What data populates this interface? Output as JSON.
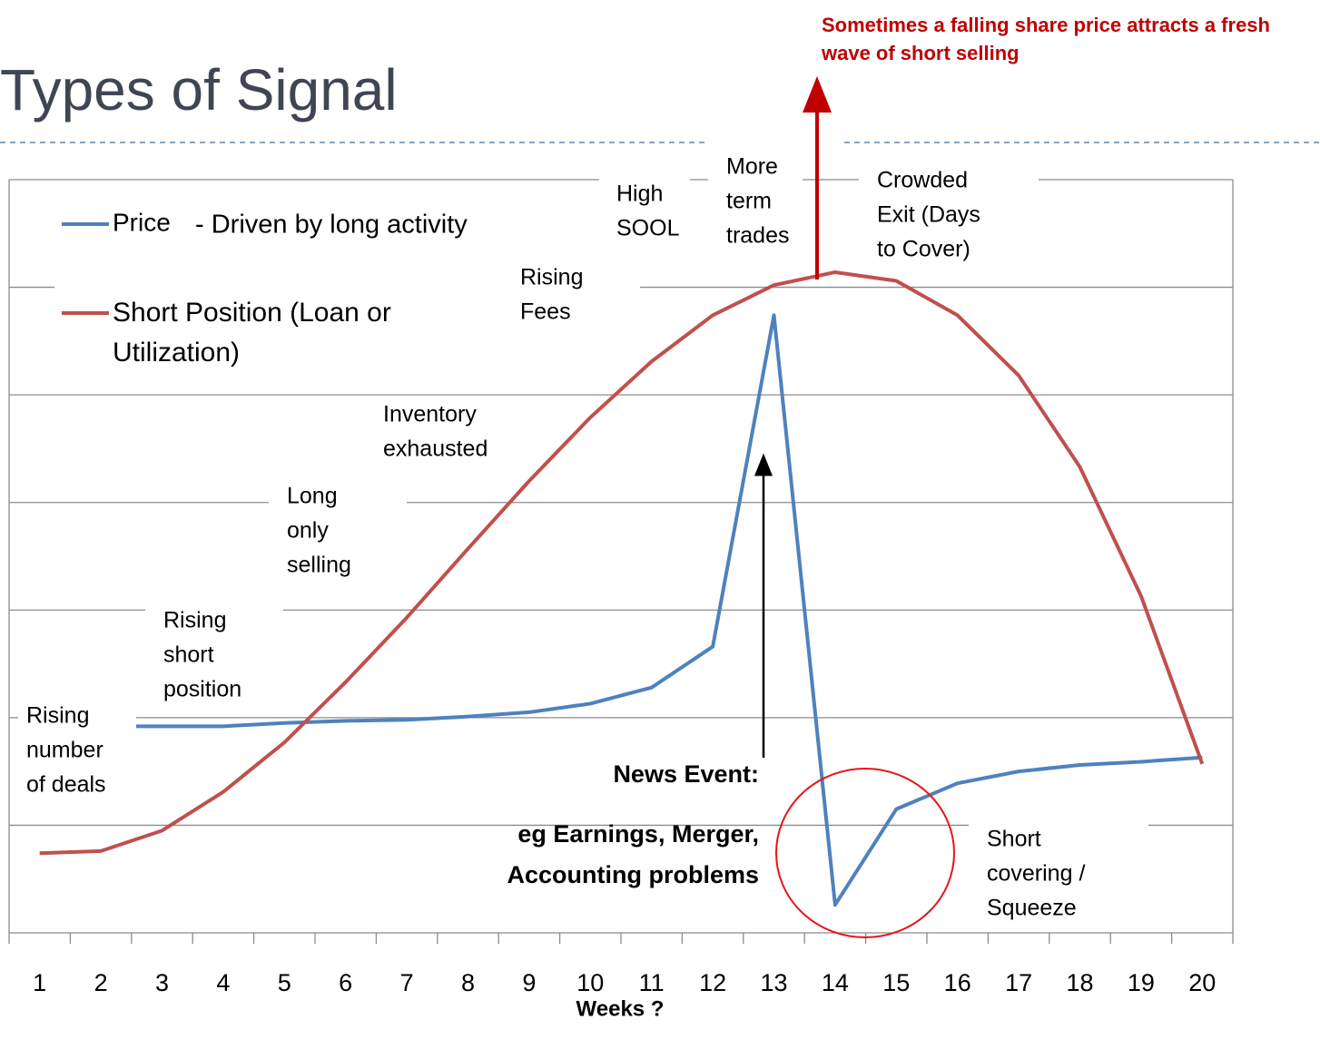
{
  "chart_data": {
    "type": "line",
    "title": "Types of Signal",
    "x_label": "Weeks ?",
    "categories": [
      "1",
      "2",
      "3",
      "4",
      "5",
      "6",
      "7",
      "8",
      "9",
      "10",
      "11",
      "12",
      "13",
      "14",
      "15",
      "16",
      "17",
      "18",
      "19",
      "20"
    ],
    "series": [
      {
        "name": "Price",
        "note": "- Driven by long activity",
        "color": "#4f81bd",
        "values": [
          1.92,
          1.92,
          1.92,
          1.92,
          1.95,
          1.97,
          1.98,
          2.01,
          2.05,
          2.13,
          2.28,
          2.66,
          5.74,
          0.26,
          1.15,
          1.39,
          1.5,
          1.56,
          1.59,
          1.63
        ]
      },
      {
        "name": "Short Position (Loan or Utilization)",
        "color": "#c0504d",
        "values": [
          0.74,
          0.76,
          0.95,
          1.31,
          1.77,
          2.33,
          2.93,
          3.57,
          4.2,
          4.79,
          5.31,
          5.74,
          6.02,
          6.14,
          6.06,
          5.74,
          5.18,
          4.33,
          3.13,
          1.57
        ]
      }
    ],
    "ylim": [
      0,
      7
    ],
    "yticks": [
      0,
      1,
      2,
      3,
      4,
      5,
      6,
      7
    ],
    "grid": true,
    "annotations": [
      {
        "lines": [
          "Rising",
          "number",
          "of deals"
        ]
      },
      {
        "lines": [
          "Rising",
          "short",
          "position"
        ]
      },
      {
        "lines": [
          "Long",
          "only",
          "selling"
        ]
      },
      {
        "lines": [
          "Inventory",
          "exhausted"
        ]
      },
      {
        "lines": [
          "Rising",
          "Fees"
        ]
      },
      {
        "lines": [
          "High",
          "SOOL"
        ]
      },
      {
        "lines": [
          "More",
          "term",
          "trades"
        ]
      },
      {
        "lines": [
          "Crowded",
          "Exit (Days",
          "to Cover)"
        ]
      },
      {
        "lines": [
          "Short",
          "covering /",
          "Squeeze"
        ]
      }
    ],
    "event_title": "News Event:",
    "event_lines": [
      "eg Earnings, Merger,",
      "Accounting problems"
    ],
    "callout": "Sometimes a falling share price attracts a fresh wave of short selling"
  }
}
